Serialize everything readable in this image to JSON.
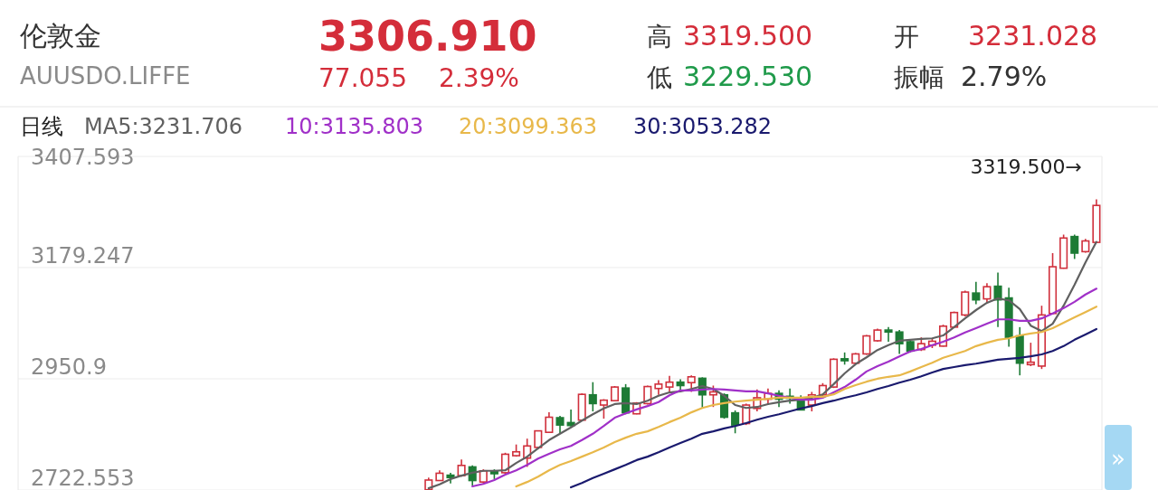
{
  "chart_data": {
    "type": "candlestick",
    "title": "伦敦金",
    "subtitle": "AUUSDO.LIFFE",
    "annotations": [
      "3306.910",
      "77.055",
      "2.39%",
      "高",
      "3319.500",
      "低",
      "3229.530",
      "开",
      "3231.028",
      "振幅",
      "2.79%",
      "3319.500→",
      "»"
    ],
    "categories": [
      null,
      null,
      null,
      null,
      null,
      null,
      null,
      null,
      null,
      null,
      null,
      null,
      null,
      null,
      null,
      null,
      null,
      null,
      null,
      null,
      null,
      null,
      null,
      null,
      null,
      null,
      null,
      null,
      null,
      null,
      null,
      null,
      null,
      null,
      null,
      null,
      null,
      null,
      null,
      null,
      null,
      null,
      null,
      null,
      null,
      null,
      null,
      null,
      null,
      null,
      null,
      null,
      null,
      null,
      null,
      null,
      null,
      null,
      null,
      null,
      null,
      null,
      null,
      null,
      null,
      null,
      null,
      null,
      null,
      null,
      null,
      null,
      null,
      null,
      null,
      null,
      null,
      null,
      null,
      null,
      null,
      null,
      null,
      null,
      null,
      null,
      null,
      null,
      null,
      null,
      null,
      null,
      null,
      null,
      null,
      null,
      null,
      null,
      null
    ],
    "ohlc": [
      null,
      null,
      null,
      null,
      null,
      null,
      null,
      null,
      null,
      null,
      null,
      null,
      null,
      null,
      null,
      null,
      null,
      null,
      null,
      null,
      null,
      null,
      null,
      null,
      null,
      null,
      null,
      null,
      null,
      null,
      null,
      null,
      null,
      null,
      null,
      null,
      null,
      [
        2723,
        2748,
        2723,
        2743
      ],
      [
        2742,
        2763,
        2741,
        2757
      ],
      [
        2753,
        2758,
        2736,
        2748
      ],
      [
        2752,
        2785,
        2750,
        2773
      ],
      [
        2770,
        2773,
        2732,
        2742
      ],
      [
        2739,
        2765,
        2736,
        2762
      ],
      [
        2760,
        2765,
        2745,
        2756
      ],
      [
        2758,
        2799,
        2756,
        2796
      ],
      [
        2793,
        2816,
        2791,
        2801
      ],
      [
        2788,
        2828,
        2770,
        2813
      ],
      [
        2810,
        2845,
        2807,
        2844
      ],
      [
        2841,
        2882,
        2840,
        2872
      ],
      [
        2871,
        2875,
        2838,
        2856
      ],
      [
        2861,
        2888,
        2853,
        2855
      ],
      [
        2866,
        2921,
        2864,
        2919
      ],
      [
        2918,
        2944,
        2884,
        2900
      ],
      [
        2897,
        2909,
        2869,
        2907
      ],
      [
        2906,
        2936,
        2905,
        2934
      ],
      [
        2932,
        2940,
        2878,
        2881
      ],
      [
        2879,
        2903,
        2878,
        2901
      ],
      [
        2900,
        2937,
        2898,
        2935
      ],
      [
        2931,
        2948,
        2918,
        2940
      ],
      [
        2934,
        2957,
        2924,
        2944
      ],
      [
        2944,
        2950,
        2923,
        2937
      ],
      [
        2943,
        2958,
        2924,
        2955
      ],
      [
        2952,
        2954,
        2892,
        2918
      ],
      [
        2918,
        2937,
        2893,
        2924
      ],
      [
        2918,
        2921,
        2869,
        2872
      ],
      [
        2881,
        2886,
        2839,
        2856
      ],
      [
        2859,
        2900,
        2856,
        2897
      ],
      [
        2890,
        2929,
        2884,
        2912
      ],
      [
        2909,
        2931,
        2897,
        2921
      ],
      [
        2921,
        2927,
        2893,
        2909
      ],
      [
        2915,
        2931,
        2900,
        2911
      ],
      [
        2909,
        2917,
        2886,
        2887
      ],
      [
        2897,
        2924,
        2884,
        2918
      ],
      [
        2918,
        2942,
        2912,
        2937
      ],
      [
        2934,
        2993,
        2932,
        2991
      ],
      [
        2992,
        3005,
        2980,
        2988
      ],
      [
        2983,
        3004,
        2982,
        3002
      ],
      [
        3002,
        3041,
        3000,
        3039
      ],
      [
        3029,
        3054,
        3027,
        3051
      ],
      [
        3051,
        3057,
        3027,
        3047
      ],
      [
        3047,
        3051,
        3002,
        3023
      ],
      [
        3027,
        3029,
        3005,
        3008
      ],
      [
        3011,
        3036,
        3008,
        3023
      ],
      [
        3020,
        3033,
        3014,
        3028
      ],
      [
        3018,
        3062,
        3017,
        3059
      ],
      [
        3057,
        3089,
        3056,
        3087
      ],
      [
        3082,
        3132,
        3079,
        3129
      ],
      [
        3127,
        3150,
        3104,
        3113
      ],
      [
        3115,
        3147,
        3107,
        3140
      ],
      [
        3141,
        3169,
        3057,
        3113
      ],
      [
        3117,
        3138,
        3017,
        3036
      ],
      [
        3039,
        3057,
        2958,
        2983
      ],
      [
        2980,
        3025,
        2977,
        2985
      ],
      [
        2977,
        3101,
        2971,
        3082
      ],
      [
        3085,
        3209,
        3083,
        3181
      ],
      [
        3178,
        3247,
        3177,
        3240
      ],
      [
        3243,
        3247,
        3197,
        3209
      ],
      [
        3212,
        3238,
        3210,
        3234
      ],
      [
        3231.028,
        3319.5,
        3229.53,
        3306.91
      ]
    ],
    "colors": [
      null,
      null,
      null,
      null,
      null,
      null,
      null,
      null,
      null,
      null,
      null,
      null,
      null,
      null,
      null,
      null,
      null,
      null,
      null,
      null,
      null,
      null,
      null,
      null,
      null,
      null,
      null,
      null,
      null,
      null,
      null,
      null,
      null,
      null,
      null,
      null,
      null,
      "#d0303c",
      "#d0303c",
      "#1d7b35",
      "#d0303c",
      "#1d7b35",
      "#d0303c",
      "#1d7b35",
      "#d0303c",
      "#d0303c",
      "#d0303c",
      "#d0303c",
      "#d0303c",
      "#1d7b35",
      "#1d7b35",
      "#d0303c",
      "#1d7b35",
      "#d0303c",
      "#d0303c",
      "#1d7b35",
      "#d0303c",
      "#d0303c",
      "#d0303c",
      "#d0303c",
      "#1d7b35",
      "#d0303c",
      "#1d7b35",
      "#d0303c",
      "#1d7b35",
      "#1d7b35",
      "#d0303c",
      "#d0303c",
      "#d0303c",
      "#1d7b35",
      "#1d7b35",
      "#1d7b35",
      "#d0303c",
      "#d0303c",
      "#d0303c",
      "#1d7b35",
      "#d0303c",
      "#d0303c",
      "#d0303c",
      "#1d7b35",
      "#1d7b35",
      "#1d7b35",
      "#d0303c",
      "#d0303c",
      "#d0303c",
      "#d0303c",
      "#d0303c",
      "#1d7b35",
      "#d0303c",
      "#1d7b35",
      "#1d7b35",
      "#1d7b35",
      "#d0303c",
      "#d0303c",
      "#d0303c",
      "#d0303c",
      "#1d7b35",
      "#d0303c",
      "#d0303c"
    ],
    "series": [
      {
        "type": "line",
        "name": "MA5:3231.706",
        "color": "#606060",
        "values": [
          null,
          null,
          null,
          null,
          null,
          null,
          null,
          null,
          null,
          null,
          null,
          null,
          null,
          null,
          null,
          null,
          null,
          null,
          null,
          null,
          null,
          null,
          null,
          null,
          null,
          null,
          null,
          null,
          null,
          null,
          null,
          null,
          null,
          null,
          null,
          null,
          null,
          2726,
          2734,
          2745,
          2752,
          2758,
          2762,
          2762,
          2763,
          2778,
          2791,
          2808,
          2825,
          2838,
          2851,
          2865,
          2878,
          2890,
          2899,
          2901,
          2899,
          2906,
          2916,
          2923,
          2925,
          2930,
          2936,
          2930,
          2916,
          2897,
          2891,
          2893,
          2899,
          2903,
          2906,
          2908,
          2912,
          2919,
          2940,
          2962,
          2981,
          2995,
          3010,
          3020,
          3029,
          3031,
          3033,
          3034,
          3040,
          3057,
          3075,
          3092,
          3107,
          3116,
          3112,
          3094,
          3060,
          3049,
          3064,
          3101,
          3144,
          3190,
          3232
        ]
      },
      {
        "type": "line",
        "name": "10:3135.803",
        "color": "#a030c8",
        "values": [
          null,
          null,
          null,
          null,
          null,
          null,
          null,
          null,
          null,
          null,
          null,
          null,
          null,
          null,
          null,
          null,
          null,
          null,
          null,
          null,
          null,
          null,
          null,
          null,
          null,
          null,
          null,
          null,
          null,
          null,
          null,
          null,
          null,
          null,
          null,
          null,
          null,
          null,
          null,
          null,
          null,
          2730,
          2735,
          2743,
          2754,
          2763,
          2774,
          2787,
          2797,
          2806,
          2813,
          2825,
          2838,
          2854,
          2871,
          2880,
          2888,
          2895,
          2903,
          2917,
          2927,
          2927,
          2929,
          2930,
          2929,
          2927,
          2925,
          2925,
          2921,
          2916,
          2912,
          2908,
          2908,
          2912,
          2923,
          2934,
          2949,
          2966,
          2977,
          2986,
          2997,
          3007,
          3012,
          3020,
          3027,
          3036,
          3046,
          3055,
          3064,
          3073,
          3073,
          3070,
          3070,
          3075,
          3085,
          3096,
          3109,
          3124,
          3136
        ]
      },
      {
        "type": "line",
        "name": "20:3099.363",
        "color": "#e8b84a",
        "values": [
          null,
          null,
          null,
          null,
          null,
          null,
          null,
          null,
          null,
          null,
          null,
          null,
          null,
          null,
          null,
          null,
          null,
          null,
          null,
          null,
          null,
          null,
          null,
          null,
          null,
          null,
          null,
          null,
          null,
          null,
          null,
          null,
          null,
          null,
          null,
          null,
          null,
          null,
          null,
          null,
          null,
          null,
          null,
          null,
          null,
          2730,
          2739,
          2750,
          2763,
          2774,
          2782,
          2791,
          2800,
          2810,
          2821,
          2830,
          2838,
          2843,
          2852,
          2862,
          2871,
          2882,
          2891,
          2897,
          2901,
          2904,
          2906,
          2908,
          2910,
          2912,
          2912,
          2912,
          2914,
          2914,
          2919,
          2930,
          2938,
          2945,
          2951,
          2955,
          2958,
          2966,
          2975,
          2984,
          2994,
          3001,
          3008,
          3018,
          3025,
          3031,
          3034,
          3040,
          3044,
          3047,
          3055,
          3066,
          3077,
          3088,
          3099
        ]
      },
      {
        "type": "line",
        "name": "30:3053.282",
        "color": "#1a1a6e",
        "values": [
          null,
          null,
          null,
          null,
          null,
          null,
          null,
          null,
          null,
          null,
          null,
          null,
          null,
          null,
          null,
          null,
          null,
          null,
          null,
          null,
          null,
          null,
          null,
          null,
          null,
          null,
          null,
          null,
          null,
          null,
          null,
          null,
          null,
          null,
          null,
          null,
          null,
          null,
          null,
          null,
          null,
          null,
          null,
          null,
          null,
          null,
          null,
          null,
          null,
          null,
          2728,
          2737,
          2747,
          2756,
          2765,
          2774,
          2784,
          2791,
          2800,
          2810,
          2819,
          2828,
          2838,
          2843,
          2849,
          2854,
          2860,
          2867,
          2873,
          2878,
          2884,
          2890,
          2895,
          2901,
          2906,
          2912,
          2917,
          2923,
          2930,
          2936,
          2943,
          2949,
          2956,
          2964,
          2971,
          2975,
          2979,
          2982,
          2986,
          2990,
          2992,
          2994,
          2997,
          3001,
          3008,
          3018,
          3031,
          3042,
          3053
        ]
      }
    ],
    "ylim": [
      2722.553,
      3407.593
    ],
    "yticks": [
      3407.593,
      3179.247,
      2950.9,
      2722.553
    ],
    "grid": "y",
    "legend": "top left",
    "legend_title": "日线",
    "tick_labels": "y"
  }
}
